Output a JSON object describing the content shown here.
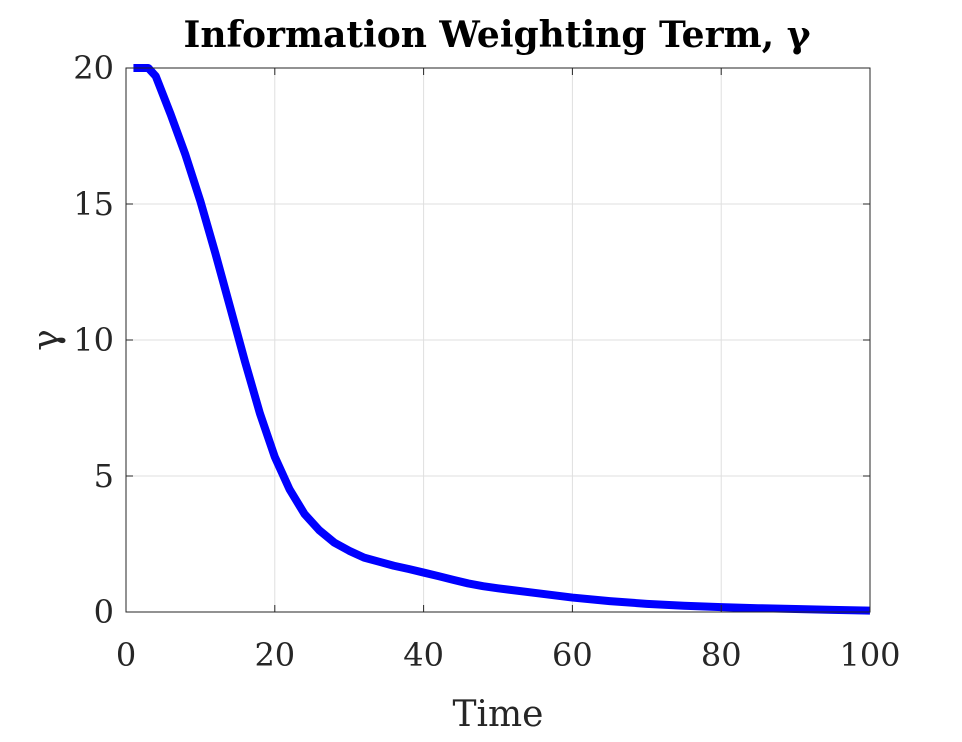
{
  "chart_data": {
    "type": "line",
    "title": "Information Weighting Term, γ",
    "xlabel": "Time",
    "ylabel": "γ",
    "xlim": [
      0,
      100
    ],
    "ylim": [
      0,
      20
    ],
    "grid": true,
    "x_ticks": [
      0,
      20,
      40,
      60,
      80,
      100
    ],
    "y_ticks": [
      0,
      5,
      10,
      15,
      20
    ],
    "series": [
      {
        "color": "#0000ff",
        "x": [
          1,
          2,
          3,
          4,
          6,
          8,
          10,
          12,
          14,
          16,
          18,
          20,
          22,
          24,
          26,
          28,
          30,
          32,
          34,
          36,
          38,
          40,
          42,
          44,
          46,
          48,
          50,
          55,
          60,
          65,
          70,
          75,
          80,
          85,
          90,
          95,
          100
        ],
        "y": [
          20,
          20,
          20,
          19.7,
          18.3,
          16.8,
          15.1,
          13.2,
          11.2,
          9.2,
          7.3,
          5.7,
          4.5,
          3.6,
          3.0,
          2.55,
          2.25,
          2.0,
          1.85,
          1.7,
          1.58,
          1.45,
          1.32,
          1.18,
          1.05,
          0.95,
          0.87,
          0.7,
          0.53,
          0.4,
          0.3,
          0.23,
          0.18,
          0.14,
          0.11,
          0.08,
          0.05
        ]
      }
    ]
  }
}
